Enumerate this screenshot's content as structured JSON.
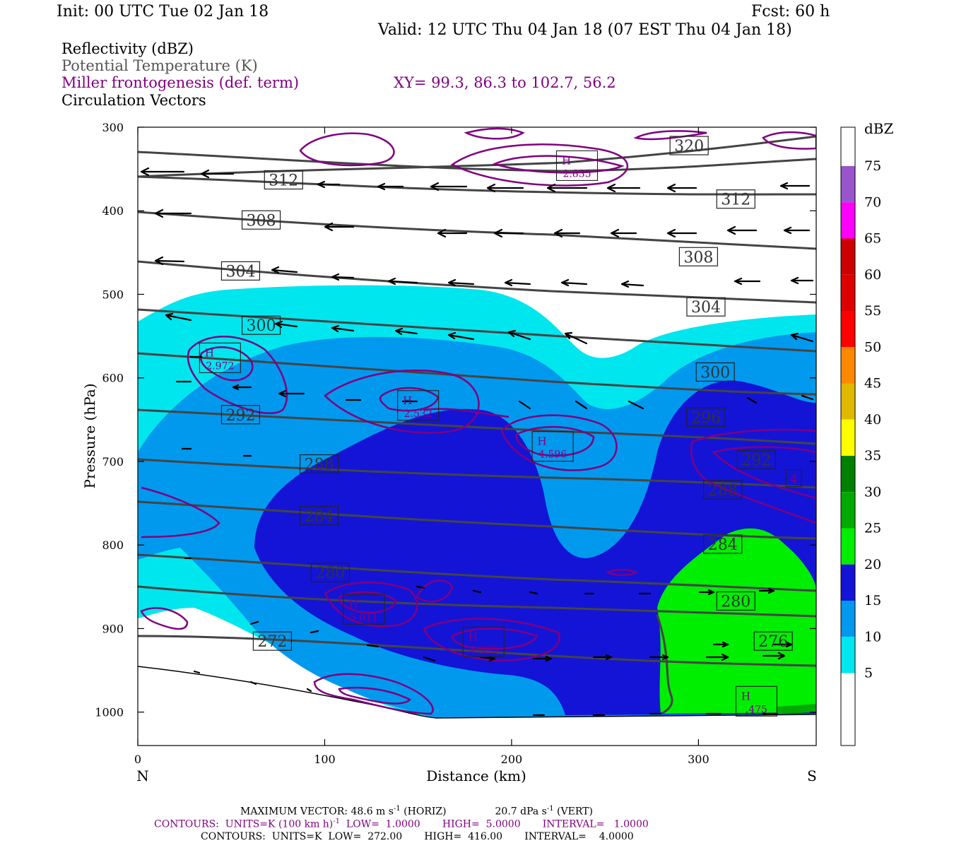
{
  "header": {
    "init": "Init: 00 UTC Tue 02 Jan 18",
    "fcst": "Fcst:   60 h",
    "valid": "Valid: 12 UTC Thu 04 Jan 18 (07 EST Thu 04 Jan 18)"
  },
  "legend": {
    "reflectivity": "Reflectivity (dBZ)",
    "theta": "Potential Temperature (K)",
    "frontogenesis": "Miller frontogenesis (def. term)",
    "xy": "XY=  99.3, 86.3 to 102.7, 56.2",
    "vectors": "Circulation Vectors",
    "reflectivity_color": "#000000",
    "theta_color": "#555555",
    "frontogenesis_color": "#800080"
  },
  "chart_data": {
    "type": "cross-section",
    "xlabel": "Distance (km)",
    "ylabel": "Pressure (hPa)",
    "xlim": [
      0,
      363
    ],
    "ylim": [
      1040,
      300
    ],
    "x_ticks": [
      "0",
      "100",
      "200",
      "300"
    ],
    "y_ticks": [
      "300",
      "400",
      "500",
      "600",
      "700",
      "800",
      "900",
      "1000"
    ],
    "left_end": "N",
    "right_end": "S",
    "colorbar": {
      "unit": "dBZ",
      "levels": [
        "75",
        "70",
        "65",
        "60",
        "55",
        "50",
        "45",
        "40",
        "35",
        "30",
        "25",
        "20",
        "15",
        "10",
        "5"
      ],
      "colors": [
        "#9955cc",
        "#ff00ff",
        "#cc0000",
        "#dd0000",
        "#ff0000",
        "#ff8800",
        "#e0b800",
        "#ffff00",
        "#008000",
        "#00aa00",
        "#00ee00",
        "#1414d6",
        "#0099ee",
        "#00e6ee",
        "#ffffff"
      ]
    },
    "theta_labels": [
      {
        "text": "320",
        "x": 295,
        "p": 322
      },
      {
        "text": "312",
        "x": 78,
        "p": 363
      },
      {
        "text": "312",
        "x": 320,
        "p": 386
      },
      {
        "text": "308",
        "x": 66,
        "p": 411
      },
      {
        "text": "308",
        "x": 300,
        "p": 455
      },
      {
        "text": "304",
        "x": 55,
        "p": 472
      },
      {
        "text": "304",
        "x": 304,
        "p": 515
      },
      {
        "text": "300",
        "x": 66,
        "p": 537
      },
      {
        "text": "300",
        "x": 309,
        "p": 593
      },
      {
        "text": "296",
        "x": 304,
        "p": 647
      },
      {
        "text": "292",
        "x": 55,
        "p": 644
      },
      {
        "text": "292",
        "x": 331,
        "p": 698
      },
      {
        "text": "288",
        "x": 97,
        "p": 703
      },
      {
        "text": "288",
        "x": 313,
        "p": 734
      },
      {
        "text": "284",
        "x": 97,
        "p": 765
      },
      {
        "text": "284",
        "x": 313,
        "p": 799
      },
      {
        "text": "280",
        "x": 103,
        "p": 833
      },
      {
        "text": "280",
        "x": 320,
        "p": 867
      },
      {
        "text": "276",
        "x": 340,
        "p": 915
      },
      {
        "text": "272",
        "x": 72,
        "p": 915
      }
    ],
    "frontogenesis_maxima": [
      {
        "label": "H",
        "value": "2.835",
        "x": 235,
        "p": 346
      },
      {
        "label": "H",
        "value": "2.972",
        "x": 44,
        "p": 576
      },
      {
        "label": "H",
        "value": "2.532",
        "x": 150,
        "p": 633
      },
      {
        "label": "H",
        "value": "4.596",
        "x": 222,
        "p": 682
      },
      {
        "label": "H",
        "value": "5.011",
        "x": 121,
        "p": 877
      },
      {
        "label": "H",
        "value": "4.395",
        "x": 185,
        "p": 916
      },
      {
        "label": "H",
        "value": ".475",
        "x": 331,
        "p": 987
      },
      {
        "label": "",
        "value": "4",
        "x": 351,
        "p": 720
      }
    ]
  },
  "footer": {
    "max_vector_label": "MAXIMUM VECTOR:",
    "max_vector_horiz": "48.6 m s",
    "max_vector_horiz_exp": "-1",
    "max_vector_horiz_unit": " (HORIZ)",
    "max_vector_vert": "20.7 dPa s",
    "max_vector_vert_exp": "-1",
    "max_vector_vert_unit": " (VERT)",
    "contours1_a": "CONTOURS:  UNITS=K (100 km h)",
    "contours1_exp": "-1",
    "contours1_b": "  LOW=  1.0000       HIGH=  5.0000       INTERVAL=   1.0000",
    "contours2": "CONTOURS:  UNITS=K  LOW=  272.00       HIGH=  416.00       INTERVAL=    4.0000"
  }
}
